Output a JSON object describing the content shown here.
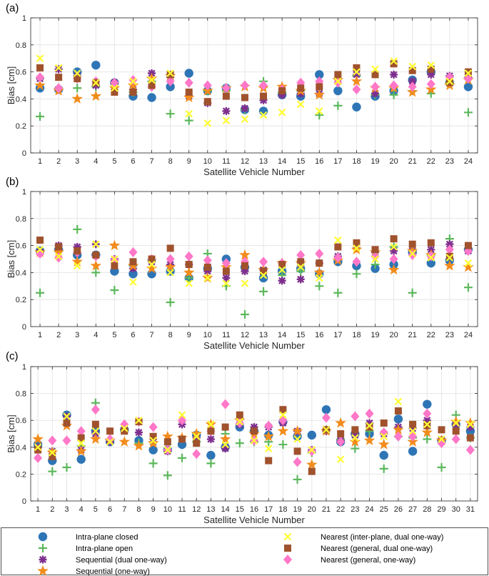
{
  "figure": {
    "panels": [
      "(a)",
      "(b)",
      "(c)"
    ],
    "ylabel": "Bias [cm]",
    "xlabel": "Satellite Vehicle Number"
  },
  "legend": [
    {
      "label": "Intra-plane closed",
      "marker": "circle",
      "color": "#2e75b6"
    },
    {
      "label": "Intra-plane open",
      "marker": "plus",
      "color": "#5cb85c"
    },
    {
      "label": "Sequential (dual one-way)",
      "marker": "asterisk",
      "color": "#7e2f8e"
    },
    {
      "label": "Sequential (one-way)",
      "marker": "star",
      "color": "#f28c1c"
    },
    {
      "label": "Nearest (inter-plane, dual one-way)",
      "marker": "x",
      "color": "#ffff33"
    },
    {
      "label": "Nearest (general, dual one-way)",
      "marker": "square",
      "color": "#a0522d"
    },
    {
      "label": "Nearest (general, one-way)",
      "marker": "diamond",
      "color": "#ff77c8"
    }
  ],
  "chart_data": [
    {
      "type": "scatter",
      "title": "(a)",
      "xlabel": "Satellite Vehicle Number",
      "ylabel": "Bias [cm]",
      "xlim": [
        0.5,
        24.5
      ],
      "ylim": [
        0,
        1
      ],
      "yticks": [
        0,
        0.2,
        0.4,
        0.6,
        0.8,
        1
      ],
      "yticklabels": [
        "0",
        "0.2",
        "0.4",
        "0.6",
        "0.8",
        "1"
      ],
      "x": [
        1,
        2,
        3,
        4,
        5,
        6,
        7,
        8,
        9,
        10,
        11,
        12,
        13,
        14,
        15,
        16,
        17,
        18,
        19,
        20,
        21,
        22,
        23,
        24
      ],
      "series": [
        {
          "name": "Intra-plane closed",
          "values": [
            0.48,
            0.47,
            0.6,
            0.65,
            0.52,
            0.42,
            0.41,
            0.49,
            0.59,
            0.46,
            0.48,
            0.32,
            0.31,
            0.43,
            0.42,
            0.58,
            0.46,
            0.34,
            0.42,
            0.46,
            0.54,
            0.6,
            0.52,
            0.49
          ]
        },
        {
          "name": "Intra-plane open",
          "values": [
            0.27,
            0.48,
            0.48,
            0.49,
            0.52,
            0.45,
            0.53,
            0.29,
            0.24,
            0.46,
            0.46,
            0.32,
            0.53,
            0.45,
            0.46,
            0.28,
            0.35,
            0.57,
            0.43,
            0.43,
            0.46,
            0.44,
            0.52,
            0.3
          ]
        },
        {
          "name": "Sequential (dual one-way)",
          "values": [
            0.55,
            0.62,
            0.57,
            0.5,
            0.52,
            0.47,
            0.59,
            0.56,
            0.42,
            0.37,
            0.31,
            0.33,
            0.39,
            0.43,
            0.44,
            0.44,
            0.55,
            0.58,
            0.44,
            0.58,
            0.53,
            0.58,
            0.57,
            0.56
          ]
        },
        {
          "name": "Sequential (one-way)",
          "values": [
            0.5,
            0.46,
            0.4,
            0.42,
            0.48,
            0.5,
            0.55,
            0.57,
            0.41,
            0.46,
            0.48,
            0.49,
            0.48,
            0.49,
            0.46,
            0.43,
            0.54,
            0.53,
            0.48,
            0.48,
            0.45,
            0.47,
            0.5,
            0.54
          ]
        },
        {
          "name": "Nearest (inter-plane, dual one-way)",
          "values": [
            0.7,
            0.63,
            0.59,
            0.52,
            0.48,
            0.53,
            0.54,
            0.59,
            0.29,
            0.22,
            0.24,
            0.25,
            0.28,
            0.3,
            0.36,
            0.31,
            0.53,
            0.6,
            0.62,
            0.68,
            0.64,
            0.65,
            0.53,
            0.59
          ]
        },
        {
          "name": "Nearest (general, dual one-way)",
          "values": [
            0.63,
            0.56,
            0.55,
            0.52,
            0.45,
            0.45,
            0.5,
            0.58,
            0.45,
            0.38,
            0.42,
            0.41,
            0.42,
            0.46,
            0.48,
            0.49,
            0.58,
            0.63,
            0.58,
            0.66,
            0.61,
            0.62,
            0.52,
            0.6
          ]
        },
        {
          "name": "Nearest (general, one-way)",
          "values": [
            0.56,
            0.48,
            0.55,
            0.53,
            0.52,
            0.54,
            0.49,
            0.53,
            0.52,
            0.5,
            0.48,
            0.5,
            0.5,
            0.47,
            0.52,
            0.53,
            0.52,
            0.47,
            0.49,
            0.5,
            0.49,
            0.51,
            0.56,
            0.55
          ]
        }
      ]
    },
    {
      "type": "scatter",
      "title": "(b)",
      "xlabel": "Satellite Vehicle Number",
      "ylabel": "Bias [cm]",
      "xlim": [
        0.5,
        24.5
      ],
      "ylim": [
        0,
        1
      ],
      "yticks": [
        0,
        0.2,
        0.4,
        0.6,
        0.8,
        1
      ],
      "yticklabels": [
        "0",
        "0.2",
        "0.4",
        "0.6",
        "0.8",
        "1"
      ],
      "x": [
        1,
        2,
        3,
        4,
        5,
        6,
        7,
        8,
        9,
        10,
        11,
        12,
        13,
        14,
        15,
        16,
        17,
        18,
        19,
        20,
        21,
        22,
        23,
        24
      ],
      "series": [
        {
          "name": "Intra-plane closed",
          "values": [
            0.56,
            0.57,
            0.53,
            0.53,
            0.41,
            0.39,
            0.39,
            0.41,
            0.36,
            0.43,
            0.5,
            0.44,
            0.36,
            0.41,
            0.43,
            0.39,
            0.48,
            0.45,
            0.43,
            0.46,
            0.55,
            0.47,
            0.49,
            0.57
          ]
        },
        {
          "name": "Intra-plane open",
          "values": [
            0.25,
            0.56,
            0.72,
            0.4,
            0.27,
            0.45,
            0.49,
            0.18,
            0.36,
            0.54,
            0.3,
            0.09,
            0.26,
            0.38,
            0.41,
            0.3,
            0.25,
            0.39,
            0.46,
            0.59,
            0.25,
            0.53,
            0.65,
            0.29
          ]
        },
        {
          "name": "Sequential (dual one-way)",
          "values": [
            0.55,
            0.6,
            0.59,
            0.61,
            0.5,
            0.43,
            0.48,
            0.46,
            0.46,
            0.41,
            0.36,
            0.41,
            0.42,
            0.34,
            0.35,
            0.47,
            0.52,
            0.58,
            0.55,
            0.56,
            0.56,
            0.57,
            0.61,
            0.56
          ]
        },
        {
          "name": "Sequential (one-way)",
          "values": [
            0.55,
            0.55,
            0.48,
            0.45,
            0.6,
            0.45,
            0.43,
            0.44,
            0.4,
            0.36,
            0.44,
            0.53,
            0.42,
            0.47,
            0.47,
            0.4,
            0.49,
            0.57,
            0.55,
            0.42,
            0.56,
            0.53,
            0.45,
            0.44
          ]
        },
        {
          "name": "Nearest (inter-plane, dual one-way)",
          "values": [
            0.57,
            0.52,
            0.45,
            0.61,
            0.5,
            0.33,
            0.46,
            0.4,
            0.32,
            0.36,
            0.32,
            0.32,
            0.38,
            0.42,
            0.44,
            0.36,
            0.64,
            0.58,
            0.5,
            0.59,
            0.54,
            0.51,
            0.51,
            0.47
          ]
        },
        {
          "name": "Nearest (general, dual one-way)",
          "values": [
            0.64,
            0.59,
            0.56,
            0.53,
            0.45,
            0.48,
            0.5,
            0.58,
            0.46,
            0.44,
            0.41,
            0.45,
            0.41,
            0.46,
            0.48,
            0.47,
            0.59,
            0.62,
            0.57,
            0.65,
            0.61,
            0.62,
            0.52,
            0.6
          ]
        },
        {
          "name": "Nearest (general, one-way)",
          "values": [
            0.54,
            0.51,
            0.55,
            0.52,
            0.49,
            0.55,
            0.5,
            0.5,
            0.52,
            0.49,
            0.47,
            0.48,
            0.48,
            0.47,
            0.53,
            0.54,
            0.51,
            0.48,
            0.52,
            0.5,
            0.53,
            0.52,
            0.57,
            0.56
          ]
        }
      ]
    },
    {
      "type": "scatter",
      "title": "(c)",
      "xlabel": "Satellite Vehicle Number",
      "ylabel": "Bias [cm]",
      "xlim": [
        0.5,
        31.5
      ],
      "ylim": [
        0,
        1
      ],
      "yticks": [
        0,
        0.2,
        0.4,
        0.6,
        0.8,
        1
      ],
      "yticklabels": [
        "0",
        "0.2",
        "0.4",
        "0.6",
        "0.8",
        "1"
      ],
      "x": [
        1,
        2,
        3,
        4,
        5,
        6,
        7,
        8,
        9,
        10,
        11,
        12,
        13,
        14,
        15,
        16,
        17,
        18,
        19,
        20,
        21,
        22,
        23,
        24,
        25,
        26,
        27,
        28,
        29,
        30,
        31
      ],
      "series": [
        {
          "name": "Intra-plane closed",
          "values": [
            0.42,
            0.3,
            0.64,
            0.31,
            0.52,
            0.44,
            0.53,
            0.45,
            0.38,
            0.38,
            0.42,
            0.49,
            0.34,
            0.4,
            0.55,
            0.52,
            0.49,
            0.59,
            0.48,
            0.49,
            0.68,
            0.44,
            0.5,
            0.5,
            0.34,
            0.61,
            0.37,
            0.72,
            0.45,
            0.57,
            0.52
          ]
        },
        {
          "name": "Intra-plane open",
          "values": [
            0.4,
            0.22,
            0.25,
            0.41,
            0.73,
            0.45,
            0.53,
            0.43,
            0.28,
            0.19,
            0.32,
            0.44,
            0.28,
            0.5,
            0.43,
            0.44,
            0.44,
            0.42,
            0.16,
            0.36,
            0.53,
            0.46,
            0.39,
            0.52,
            0.24,
            0.48,
            0.47,
            0.46,
            0.25,
            0.64,
            0.47
          ]
        },
        {
          "name": "Sequential (dual one-way)",
          "values": [
            0.4,
            0.37,
            0.63,
            0.38,
            0.5,
            0.44,
            0.53,
            0.51,
            0.44,
            0.37,
            0.57,
            0.47,
            0.46,
            0.39,
            0.57,
            0.55,
            0.55,
            0.58,
            0.52,
            0.38,
            0.52,
            0.45,
            0.49,
            0.58,
            0.5,
            0.55,
            0.54,
            0.6,
            0.45,
            0.57,
            0.55
          ]
        },
        {
          "name": "Sequential (one-way)",
          "values": [
            0.46,
            0.36,
            0.56,
            0.37,
            0.46,
            0.45,
            0.44,
            0.41,
            0.43,
            0.48,
            0.47,
            0.5,
            0.57,
            0.46,
            0.6,
            0.5,
            0.48,
            0.52,
            0.52,
            0.27,
            0.52,
            0.58,
            0.44,
            0.45,
            0.42,
            0.53,
            0.44,
            0.51,
            0.45,
            0.59,
            0.58
          ]
        },
        {
          "name": "Nearest (inter-plane, dual one-way)",
          "values": [
            0.4,
            0.36,
            0.63,
            0.43,
            0.52,
            0.44,
            0.54,
            0.6,
            0.45,
            0.38,
            0.64,
            0.48,
            0.57,
            0.42,
            0.59,
            0.45,
            0.39,
            0.64,
            0.46,
            0.38,
            0.53,
            0.31,
            0.47,
            0.56,
            0.48,
            0.74,
            0.52,
            0.57,
            0.46,
            0.58,
            0.57
          ]
        },
        {
          "name": "Nearest (general, dual one-way)",
          "values": [
            0.38,
            0.33,
            0.58,
            0.47,
            0.57,
            0.52,
            0.52,
            0.59,
            0.48,
            0.44,
            0.46,
            0.43,
            0.52,
            0.55,
            0.64,
            0.52,
            0.3,
            0.68,
            0.37,
            0.22,
            0.53,
            0.5,
            0.53,
            0.55,
            0.58,
            0.67,
            0.57,
            0.56,
            0.53,
            0.52,
            0.47
          ]
        },
        {
          "name": "Nearest (general, one-way)",
          "values": [
            0.32,
            0.45,
            0.45,
            0.52,
            0.68,
            0.46,
            0.57,
            0.59,
            0.55,
            0.38,
            0.6,
            0.35,
            0.52,
            0.72,
            0.58,
            0.45,
            0.56,
            0.6,
            0.29,
            0.37,
            0.62,
            0.44,
            0.63,
            0.65,
            0.51,
            0.48,
            0.48,
            0.65,
            0.43,
            0.46,
            0.38
          ]
        }
      ]
    }
  ]
}
